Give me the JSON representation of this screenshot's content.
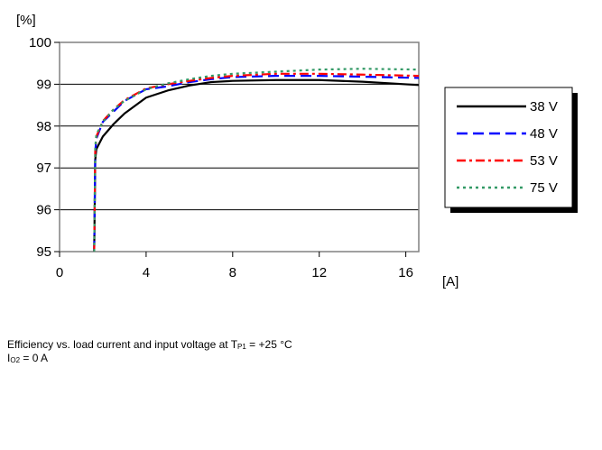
{
  "chart_data": {
    "type": "line",
    "ylabel": "[%]",
    "xlabel": "[A]",
    "xlim": [
      0,
      16.6
    ],
    "ylim": [
      95,
      100
    ],
    "xticks": [
      "0",
      "4",
      "8",
      "12",
      "16"
    ],
    "yticks": [
      "95",
      "96",
      "97",
      "98",
      "99",
      "100"
    ],
    "grid": "horizontal",
    "legend_position": "right",
    "series": [
      {
        "name": "38 V",
        "color": "#000000",
        "dash": "solid",
        "x": [
          1.6,
          1.65,
          1.7,
          2,
          2.5,
          3,
          4,
          5,
          6,
          7,
          8,
          10,
          12,
          14,
          16.6
        ],
        "y": [
          95,
          97.2,
          97.45,
          97.75,
          98.05,
          98.3,
          98.68,
          98.85,
          98.97,
          99.05,
          99.08,
          99.1,
          99.1,
          99.06,
          98.98
        ]
      },
      {
        "name": "48 V",
        "color": "#0000ff",
        "dash": "long-dash",
        "x": [
          1.6,
          1.65,
          1.7,
          2,
          2.5,
          3,
          4,
          5,
          6,
          7,
          8,
          10,
          12,
          14,
          16.6
        ],
        "y": [
          95,
          97.4,
          97.7,
          98.1,
          98.35,
          98.6,
          98.88,
          98.95,
          99.05,
          99.12,
          99.17,
          99.2,
          99.2,
          99.18,
          99.15
        ]
      },
      {
        "name": "53 V",
        "color": "#ff0000",
        "dash": "dash-dot",
        "x": [
          1.6,
          1.65,
          1.7,
          2,
          2.5,
          3,
          4,
          5,
          6,
          7,
          8,
          10,
          12,
          14,
          16.6
        ],
        "y": [
          95,
          97.45,
          97.75,
          98.12,
          98.4,
          98.62,
          98.9,
          99.0,
          99.08,
          99.15,
          99.2,
          99.25,
          99.25,
          99.23,
          99.2
        ]
      },
      {
        "name": "75 V",
        "color": "#339966",
        "dash": "dotted",
        "x": [
          1.6,
          1.65,
          1.7,
          2,
          2.5,
          3,
          4,
          5,
          6,
          7,
          8,
          10,
          12,
          14,
          16.6
        ],
        "y": [
          95,
          97.5,
          97.8,
          98.1,
          98.4,
          98.6,
          98.88,
          99.02,
          99.12,
          99.2,
          99.25,
          99.3,
          99.35,
          99.37,
          99.35
        ]
      }
    ]
  },
  "caption": {
    "line1_prefix": "Efficiency vs. load current and input voltage at T",
    "line1_sub": "P1",
    "line1_suffix": " = +25 °C",
    "line2_prefix": "I",
    "line2_sub": "O2",
    "line2_suffix": " = 0 A"
  }
}
